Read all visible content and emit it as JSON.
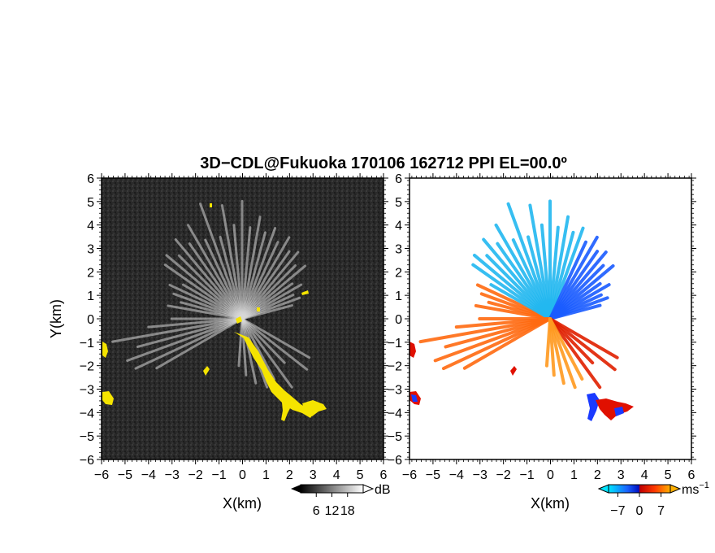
{
  "chart_data": {
    "type": "heatmap",
    "title": "3D−CDL@Fukuoka 170106 162712 PPI EL=00.0º",
    "panels": [
      {
        "name": "left",
        "quantity": "reflectivity",
        "xlabel": "X(km)",
        "ylabel": "Y(km)",
        "xlim": [
          -6,
          6
        ],
        "ylim": [
          -6,
          6
        ],
        "xticks": [
          "−6",
          "−5",
          "−4",
          "−3",
          "−2",
          "−1",
          "0",
          "1",
          "2",
          "3",
          "4",
          "5",
          "6"
        ],
        "yticks": [
          "6",
          "5",
          "4",
          "3",
          "2",
          "1",
          "0",
          "−1",
          "−2",
          "−3",
          "−4",
          "−5",
          "−6"
        ],
        "background_color": "#2a2a2a",
        "feature_color": "#f5e400",
        "colorbar": {
          "unit": "dB",
          "ticks": [
            "6",
            "12",
            "18"
          ],
          "range": [
            0,
            24
          ],
          "colors": [
            "#000000",
            "#ffffff"
          ]
        }
      },
      {
        "name": "right",
        "quantity": "radial velocity",
        "xlabel": "X(km)",
        "xlim": [
          -6,
          6
        ],
        "ylim": [
          -6,
          6
        ],
        "xticks": [
          "−6",
          "−5",
          "−4",
          "−3",
          "−2",
          "−1",
          "0",
          "1",
          "2",
          "3",
          "4",
          "5",
          "6"
        ],
        "yticks": [
          "6",
          "5",
          "4",
          "3",
          "2",
          "1",
          "0",
          "−1",
          "−2",
          "−3",
          "−4",
          "−5",
          "−6"
        ],
        "colorbar": {
          "unit": "ms",
          "unit_exp": "−1",
          "ticks": [
            "−7",
            "0",
            "7"
          ],
          "range": [
            -10,
            10
          ],
          "colors": [
            "#00e5ff",
            "#1a64ff",
            "#0010c0",
            "#c00000",
            "#ff3a00",
            "#ffb000"
          ]
        }
      }
    ],
    "spoke_azimuths_deg": [
      280,
      285,
      290,
      295,
      300,
      305,
      310,
      315,
      320,
      325,
      330,
      335,
      340,
      345,
      350,
      355,
      0,
      5,
      10,
      15,
      20,
      25,
      30,
      35,
      40,
      45,
      50,
      55,
      60,
      65,
      70,
      75
    ],
    "spoke_ranges_km": [
      3.2,
      2.7,
      3.1,
      3.4,
      2.9,
      4.0,
      4.2,
      3.8,
      4.4,
      3.9,
      4.6,
      3.7,
      5.2,
      3.6,
      4.9,
      4.0,
      5.0,
      3.9,
      4.4,
      3.8,
      4.1,
      3.6,
      4.0,
      3.5,
      3.7,
      3.2,
      3.5,
      2.6,
      2.9,
      2.4,
      2.6,
      2.2
    ],
    "lower_spoke_azimuths_deg": [
      240,
      245,
      250,
      255,
      260,
      265,
      270,
      120,
      128,
      136,
      144,
      152,
      160,
      168,
      176,
      184
    ],
    "lower_spoke_ranges_km": [
      4.2,
      5.0,
      5.2,
      4.6,
      5.6,
      4.0,
      3.0,
      3.3,
      3.5,
      2.6,
      3.6,
      2.9,
      3.1,
      2.8,
      2.4,
      2.0
    ]
  }
}
